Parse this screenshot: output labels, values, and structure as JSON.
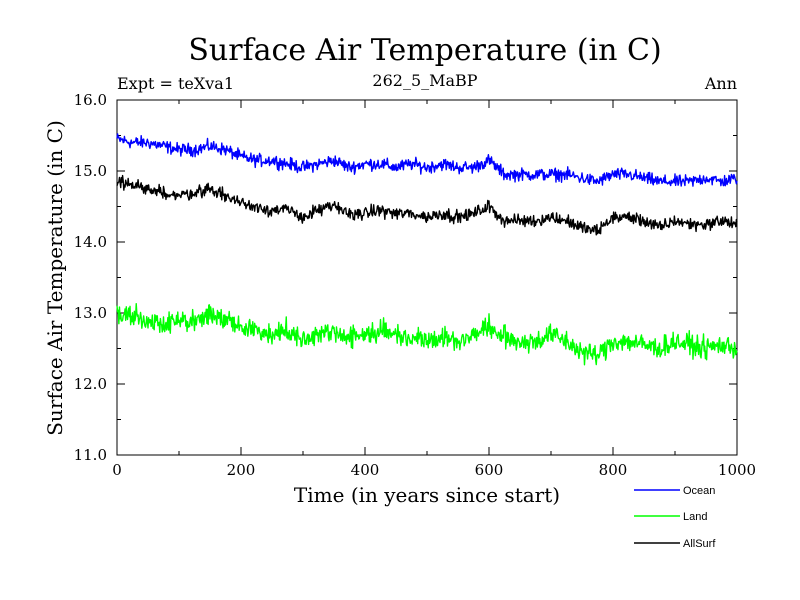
{
  "chart_data": {
    "type": "line",
    "title": "Surface Air Temperature (in C)",
    "subtitle_left": "Expt = teXva1",
    "subtitle_center": "262_5_MaBP",
    "subtitle_right": "Ann",
    "xlabel": "Time (in years since start)",
    "ylabel": "Surface Air Temperature (in C)",
    "xlim": [
      0,
      1000
    ],
    "ylim": [
      11.0,
      16.0
    ],
    "xticks": [
      0,
      200,
      400,
      600,
      800,
      1000
    ],
    "xtick_labels": [
      "0",
      "200",
      "400",
      "600",
      "800",
      "1000"
    ],
    "yticks": [
      11.0,
      12.0,
      13.0,
      14.0,
      15.0,
      16.0
    ],
    "ytick_labels": [
      "11.0",
      "12.0",
      "13.0",
      "14.0",
      "15.0",
      "16.0"
    ],
    "legend_position": "bottom-right, outside plot",
    "series": [
      {
        "name": "Ocean",
        "color": "#0000ff",
        "x": [
          0,
          25,
          50,
          75,
          100,
          125,
          150,
          175,
          200,
          225,
          250,
          275,
          300,
          325,
          350,
          375,
          400,
          425,
          450,
          475,
          500,
          525,
          550,
          575,
          600,
          625,
          650,
          675,
          700,
          725,
          750,
          775,
          800,
          825,
          850,
          875,
          900,
          925,
          950,
          975,
          1000
        ],
        "values": [
          15.45,
          15.4,
          15.4,
          15.35,
          15.3,
          15.3,
          15.35,
          15.3,
          15.2,
          15.15,
          15.15,
          15.1,
          15.05,
          15.1,
          15.15,
          15.05,
          15.1,
          15.1,
          15.05,
          15.1,
          15.05,
          15.1,
          15.05,
          15.05,
          15.15,
          14.95,
          14.95,
          14.95,
          14.95,
          14.95,
          14.9,
          14.85,
          14.95,
          14.95,
          14.9,
          14.85,
          14.85,
          14.85,
          14.9,
          14.85,
          14.9
        ]
      },
      {
        "name": "Land",
        "color": "#00ff00",
        "x": [
          0,
          25,
          50,
          75,
          100,
          125,
          150,
          175,
          200,
          225,
          250,
          275,
          300,
          325,
          350,
          375,
          400,
          425,
          450,
          475,
          500,
          525,
          550,
          575,
          600,
          625,
          650,
          675,
          700,
          725,
          750,
          775,
          800,
          825,
          850,
          875,
          900,
          925,
          950,
          975,
          1000
        ],
        "values": [
          13.0,
          12.95,
          12.9,
          12.85,
          12.9,
          12.85,
          13.0,
          12.9,
          12.8,
          12.75,
          12.7,
          12.75,
          12.65,
          12.7,
          12.75,
          12.65,
          12.7,
          12.75,
          12.7,
          12.65,
          12.65,
          12.65,
          12.6,
          12.7,
          12.8,
          12.65,
          12.6,
          12.6,
          12.7,
          12.6,
          12.45,
          12.4,
          12.6,
          12.6,
          12.55,
          12.5,
          12.6,
          12.55,
          12.5,
          12.55,
          12.5
        ]
      },
      {
        "name": "AllSurf",
        "color": "#000000",
        "x": [
          0,
          25,
          50,
          75,
          100,
          125,
          150,
          175,
          200,
          225,
          250,
          275,
          300,
          325,
          350,
          375,
          400,
          425,
          450,
          475,
          500,
          525,
          550,
          575,
          600,
          625,
          650,
          675,
          700,
          725,
          750,
          775,
          800,
          825,
          850,
          875,
          900,
          925,
          950,
          975,
          1000
        ],
        "values": [
          14.85,
          14.8,
          14.75,
          14.7,
          14.65,
          14.7,
          14.75,
          14.65,
          14.55,
          14.5,
          14.45,
          14.45,
          14.35,
          14.45,
          14.5,
          14.4,
          14.4,
          14.45,
          14.4,
          14.4,
          14.35,
          14.4,
          14.35,
          14.4,
          14.5,
          14.3,
          14.3,
          14.3,
          14.35,
          14.3,
          14.2,
          14.15,
          14.35,
          14.35,
          14.3,
          14.2,
          14.3,
          14.25,
          14.25,
          14.3,
          14.25
        ]
      }
    ]
  }
}
